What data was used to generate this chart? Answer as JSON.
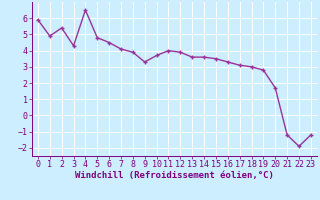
{
  "x": [
    0,
    1,
    2,
    3,
    4,
    5,
    6,
    7,
    8,
    9,
    10,
    11,
    12,
    13,
    14,
    15,
    16,
    17,
    18,
    19,
    20,
    21,
    22,
    23
  ],
  "y": [
    5.9,
    4.9,
    5.4,
    4.3,
    6.5,
    4.8,
    4.5,
    4.1,
    3.9,
    3.3,
    3.7,
    4.0,
    3.9,
    3.6,
    3.6,
    3.5,
    3.3,
    3.1,
    3.0,
    2.8,
    1.7,
    -1.2,
    -1.9,
    -1.2
  ],
  "line_color": "#993399",
  "marker": "+",
  "marker_size": 3,
  "line_width": 1.0,
  "xlabel": "Windchill (Refroidissement éolien,°C)",
  "ylim": [
    -2.5,
    7.0
  ],
  "xlim": [
    -0.5,
    23.5
  ],
  "yticks": [
    -2,
    -1,
    0,
    1,
    2,
    3,
    4,
    5,
    6
  ],
  "xticks": [
    0,
    1,
    2,
    3,
    4,
    5,
    6,
    7,
    8,
    9,
    10,
    11,
    12,
    13,
    14,
    15,
    16,
    17,
    18,
    19,
    20,
    21,
    22,
    23
  ],
  "background_color": "#cceeff",
  "grid_color": "#ffffff",
  "tick_color": "#800080",
  "label_color": "#800080",
  "xlabel_fontsize": 6.5,
  "tick_fontsize": 6.0
}
